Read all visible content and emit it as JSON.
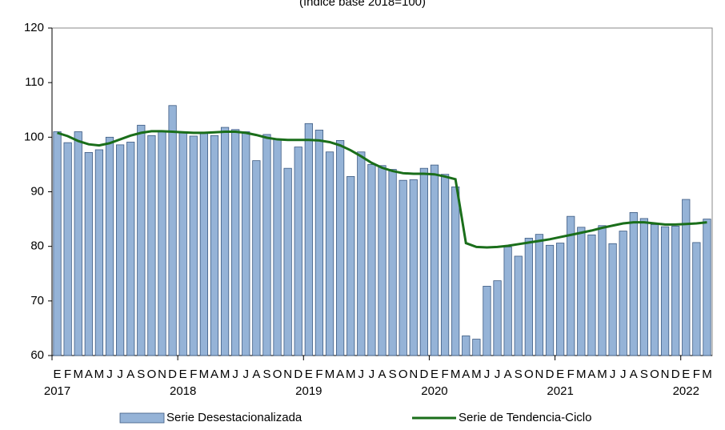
{
  "chart_data": {
    "type": "bar-line",
    "subtitle": "(índice base 2018=100)",
    "categories": [
      "E",
      "F",
      "M",
      "A",
      "M",
      "J",
      "J",
      "A",
      "S",
      "O",
      "N",
      "D",
      "E",
      "F",
      "M",
      "A",
      "M",
      "J",
      "J",
      "A",
      "S",
      "O",
      "N",
      "D",
      "E",
      "F",
      "M",
      "A",
      "M",
      "J",
      "J",
      "A",
      "S",
      "O",
      "N",
      "D",
      "E",
      "F",
      "M",
      "A",
      "M",
      "J",
      "J",
      "A",
      "S",
      "O",
      "N",
      "D",
      "E",
      "F",
      "M",
      "A",
      "M",
      "J",
      "J",
      "A",
      "S",
      "O",
      "N",
      "D",
      "E",
      "F",
      "M"
    ],
    "years": [
      "2017",
      "2018",
      "2019",
      "2020",
      "2021",
      "2022"
    ],
    "series": [
      {
        "name": "Serie Desestacionalizada",
        "color": "#95b3d7",
        "kind": "bar",
        "values": [
          101,
          99,
          101,
          97.2,
          97.7,
          100,
          98.6,
          99.1,
          102.2,
          100.3,
          101,
          105.8,
          100.8,
          100.2,
          100.8,
          100.3,
          101.8,
          101.4,
          101,
          95.7,
          100.5,
          99.6,
          94.3,
          98.2,
          102.5,
          101.3,
          97.3,
          99.4,
          92.8,
          97.3,
          95,
          94.8,
          94.1,
          92.1,
          92.2,
          94.3,
          94.9,
          93.2,
          90.9,
          63.6,
          63,
          72.7,
          73.7,
          79.9,
          78.2,
          81.5,
          82.2,
          80.2,
          80.6,
          85.5,
          83.5,
          82.1,
          83.8,
          80.5,
          82.8,
          86.2,
          85.1,
          84,
          83.6,
          83.7,
          88.6,
          80.7,
          85
        ]
      },
      {
        "name": "Serie de Tendencia-Ciclo",
        "color": "#1a6e1a",
        "kind": "line",
        "values": [
          100.8,
          100.2,
          99.3,
          98.7,
          98.5,
          98.9,
          99.6,
          100.3,
          100.8,
          101.1,
          101.1,
          101,
          100.9,
          100.8,
          100.8,
          100.9,
          101,
          101,
          100.8,
          100.4,
          99.9,
          99.6,
          99.5,
          99.5,
          99.5,
          99.4,
          99.1,
          98.5,
          97.6,
          96.5,
          95.3,
          94.4,
          93.8,
          93.4,
          93.3,
          93.3,
          93.2,
          92.8,
          92.3,
          80.6,
          79.9,
          79.8,
          79.9,
          80.1,
          80.4,
          80.7,
          81,
          81.3,
          81.7,
          82.1,
          82.5,
          82.9,
          83.4,
          83.8,
          84.2,
          84.4,
          84.4,
          84.2,
          84,
          84,
          84.1,
          84.2,
          84.4
        ]
      }
    ],
    "ylim": [
      60,
      120
    ],
    "yticks": [
      60,
      70,
      80,
      90,
      100,
      110,
      120
    ],
    "grid": false
  }
}
